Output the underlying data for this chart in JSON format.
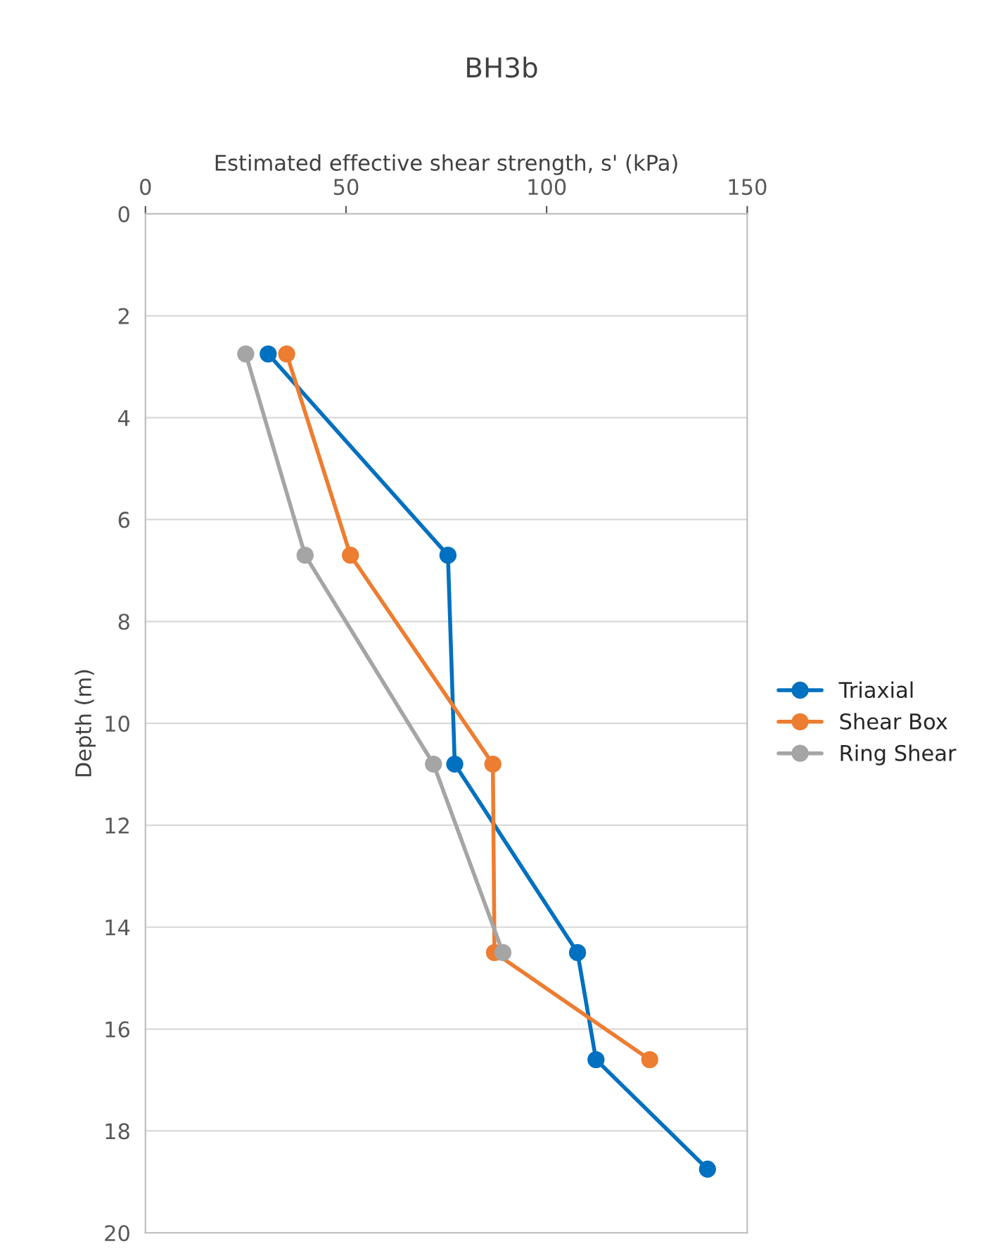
{
  "chart_data": {
    "type": "line",
    "title": "BH3b",
    "xlabel": "Estimated effective shear strength, s' (kPa)",
    "ylabel": "Depth (m)",
    "xlim": [
      0,
      150
    ],
    "xticks": [
      0,
      50,
      100,
      150
    ],
    "ylim": [
      20,
      0
    ],
    "yticks": [
      0,
      2,
      4,
      6,
      8,
      10,
      12,
      14,
      16,
      18,
      20
    ],
    "grid": "y",
    "legend": "right",
    "marker": "circle",
    "line_style": "solid",
    "series": [
      {
        "name": "Triaxial",
        "color": "#0070c0",
        "x": [
          30.6,
          75.4,
          77.1,
          107.7,
          112.3,
          140.1
        ],
        "values": [
          2.75,
          6.7,
          10.8,
          14.5,
          16.6,
          18.75
        ]
      },
      {
        "name": "Shear Box",
        "color": "#ed7d31",
        "x": [
          35.2,
          51.1,
          86.6,
          87.0,
          125.7
        ],
        "values": [
          2.75,
          6.7,
          10.8,
          14.5,
          16.6
        ]
      },
      {
        "name": "Ring Shear",
        "color": "#a5a5a5",
        "x": [
          25.0,
          39.8,
          71.8,
          89.1
        ],
        "values": [
          2.75,
          6.7,
          10.8,
          14.5
        ]
      }
    ]
  }
}
